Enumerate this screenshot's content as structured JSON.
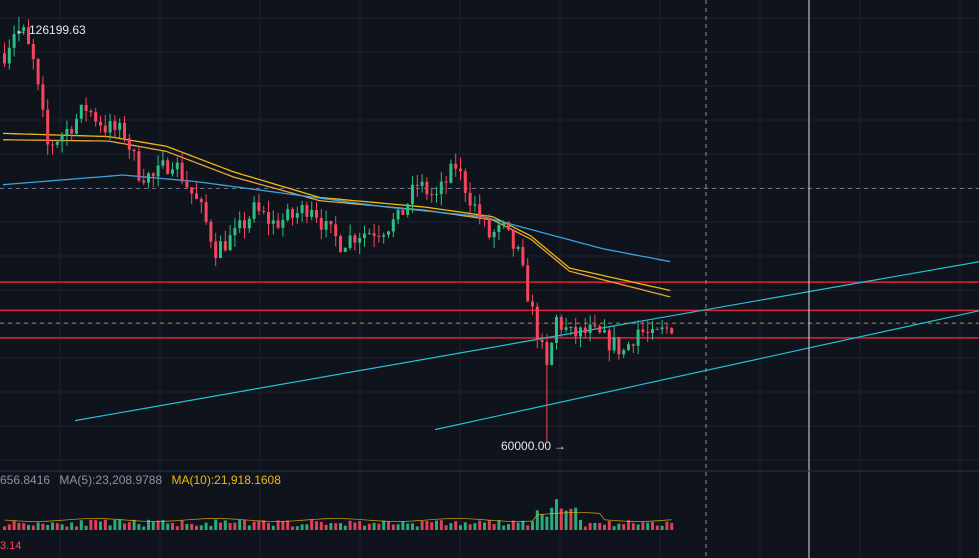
{
  "chart_data": {
    "type": "candlestick",
    "title": "",
    "ylim": [
      55500,
      128800
    ],
    "colors": {
      "up": "#2ebd85",
      "down": "#f6465d",
      "ma_fast": "#f0b90b",
      "ma_mid": "#e8a33c",
      "ma_slow": "#36a3e0",
      "trend": "#25c2d6",
      "levels": "#e0223b",
      "grid": "#1c2230",
      "crosshair": "#d8dce4",
      "background": "#0f131c",
      "text": "#e6e8ee"
    },
    "high_label": "126199.63",
    "high_value": 126199.63,
    "low_label": "60000.00",
    "low_value": 60000.0,
    "horizontal_levels": [
      84800,
      80400,
      76100
    ],
    "dashed_levels": [
      99400,
      78400
    ],
    "candle_count": 140,
    "price_path": [
      [
        0,
        120500
      ],
      [
        3,
        125800
      ],
      [
        6,
        119000
      ],
      [
        9,
        106000
      ],
      [
        13,
        108500
      ],
      [
        17,
        112000
      ],
      [
        21,
        109000
      ],
      [
        25,
        108000
      ],
      [
        28,
        102000
      ],
      [
        31,
        101000
      ],
      [
        35,
        104000
      ],
      [
        38,
        100000
      ],
      [
        41,
        96000
      ],
      [
        44,
        90000
      ],
      [
        48,
        92000
      ],
      [
        52,
        96000
      ],
      [
        56,
        94000
      ],
      [
        60,
        95000
      ],
      [
        64,
        97000
      ],
      [
        67,
        93000
      ],
      [
        70,
        91000
      ],
      [
        74,
        92500
      ],
      [
        78,
        93000
      ],
      [
        82,
        94500
      ],
      [
        86,
        100000
      ],
      [
        90,
        98000
      ],
      [
        94,
        103000
      ],
      [
        97,
        98000
      ],
      [
        101,
        92000
      ],
      [
        104,
        93000
      ],
      [
        107,
        89000
      ],
      [
        110,
        80000
      ],
      [
        113,
        71000
      ],
      [
        115,
        79000
      ],
      [
        118,
        76500
      ],
      [
        122,
        77000
      ],
      [
        126,
        75500
      ],
      [
        129,
        74000
      ],
      [
        132,
        77500
      ],
      [
        135,
        76000
      ],
      [
        139,
        78000
      ]
    ],
    "moving_average_paths": [
      {
        "name": "MA fast",
        "points": [
          [
            0,
            108000
          ],
          [
            22,
            107500
          ],
          [
            34,
            106000
          ],
          [
            48,
            102000
          ],
          [
            66,
            98000
          ],
          [
            88,
            96500
          ],
          [
            102,
            95000
          ],
          [
            110,
            92000
          ],
          [
            118,
            87000
          ],
          [
            139,
            83500
          ]
        ]
      },
      {
        "name": "MA mid",
        "points": [
          [
            0,
            107000
          ],
          [
            22,
            106800
          ],
          [
            34,
            105200
          ],
          [
            48,
            101200
          ],
          [
            66,
            97500
          ],
          [
            88,
            96000
          ],
          [
            102,
            94500
          ],
          [
            110,
            91500
          ],
          [
            118,
            86500
          ],
          [
            139,
            82500
          ]
        ]
      },
      {
        "name": "MA slow",
        "points": [
          [
            0,
            100000
          ],
          [
            25,
            101500
          ],
          [
            40,
            100500
          ],
          [
            60,
            98500
          ],
          [
            80,
            96500
          ],
          [
            100,
            95000
          ],
          [
            115,
            92000
          ],
          [
            125,
            90000
          ],
          [
            139,
            88000
          ]
        ]
      }
    ],
    "trend_lines": [
      {
        "from": [
          15,
          63200
        ],
        "to": [
          205,
          88200
        ]
      },
      {
        "from": [
          90,
          61800
        ],
        "to": [
          205,
          80600
        ]
      }
    ],
    "volume": {
      "legend": [
        {
          "text": "656.8416",
          "color": "#8b93a7"
        },
        {
          "text": "MA(5):23,208.9788",
          "color": "#8b93a7"
        },
        {
          "text": "MA(10):21,918.1608",
          "color": "#f0b90b"
        }
      ],
      "bottom_value": "3.14",
      "spike_index": 115
    }
  }
}
